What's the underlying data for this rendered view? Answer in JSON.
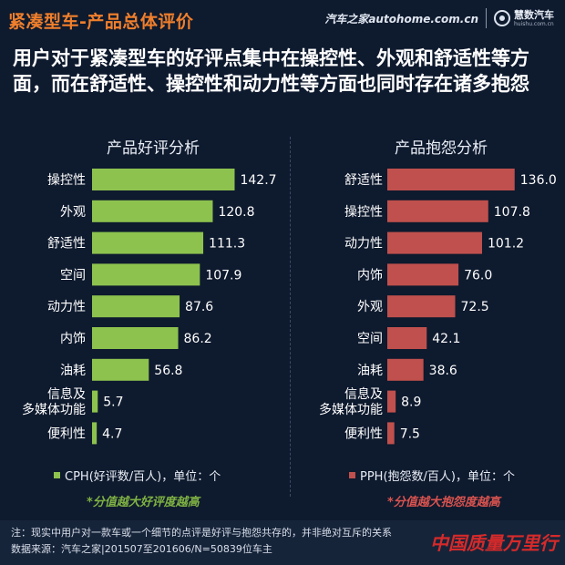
{
  "header": {
    "title": "紧凑型车-产品总体评价",
    "brand_autohome": "汽车之家autohome.com.cn",
    "brand_huishu": "慧数汽车",
    "brand_huishu_url": "huishu.com.cn"
  },
  "headline": "用户对于紧凑型车的好评点集中在操控性、外观和舒适性等方面，而在舒适性、操控性和动力性等方面也同时存在诸多抱怨",
  "chart_data": [
    {
      "type": "bar",
      "orientation": "horizontal",
      "title": "产品好评分析",
      "categories": [
        "操控性",
        "外观",
        "舒适性",
        "空间",
        "动力性",
        "内饰",
        "油耗",
        "信息及多媒体功能",
        "便利性"
      ],
      "category_lines": [
        [
          "操控性"
        ],
        [
          "外观"
        ],
        [
          "舒适性"
        ],
        [
          "空间"
        ],
        [
          "动力性"
        ],
        [
          "内饰"
        ],
        [
          "油耗"
        ],
        [
          "信息及",
          "多媒体功能"
        ],
        [
          "便利性"
        ]
      ],
      "values": [
        142.7,
        120.8,
        111.3,
        107.9,
        87.6,
        86.2,
        56.8,
        5.7,
        4.7
      ],
      "value_labels": [
        "142.7",
        "120.8",
        "111.3",
        "107.9",
        "87.6",
        "86.2",
        "56.8",
        "5.7",
        "4.7"
      ],
      "xlim": [
        0,
        145
      ],
      "color": "#8dc24e",
      "legend": "CPH(好评数/百人)，单位：个",
      "note": "*分值越大好评度越高"
    },
    {
      "type": "bar",
      "orientation": "horizontal",
      "title": "产品抱怨分析",
      "categories": [
        "舒适性",
        "操控性",
        "动力性",
        "内饰",
        "外观",
        "空间",
        "油耗",
        "信息及多媒体功能",
        "便利性"
      ],
      "category_lines": [
        [
          "舒适性"
        ],
        [
          "操控性"
        ],
        [
          "动力性"
        ],
        [
          "内饰"
        ],
        [
          "外观"
        ],
        [
          "空间"
        ],
        [
          "油耗"
        ],
        [
          "信息及",
          "多媒体功能"
        ],
        [
          "便利性"
        ]
      ],
      "values": [
        136.0,
        107.8,
        101.2,
        76.0,
        72.5,
        42.1,
        38.6,
        8.9,
        7.5
      ],
      "value_labels": [
        "136.0",
        "107.8",
        "101.2",
        "76.0",
        "72.5",
        "42.1",
        "38.6",
        "8.9",
        "7.5"
      ],
      "xlim": [
        0,
        145
      ],
      "color": "#c0504d",
      "legend": "PPH(抱怨数/百人)，单位：个",
      "note": "*分值越大抱怨度越高"
    }
  ],
  "footer": {
    "note": "注：现实中用户对一款车或一个细节的点评是好评与抱怨共存的，并非绝对互斥的关系",
    "source": "数据来源：汽车之家|201507至201606/N=50839位车主",
    "watermark": "中国质量万里行"
  }
}
